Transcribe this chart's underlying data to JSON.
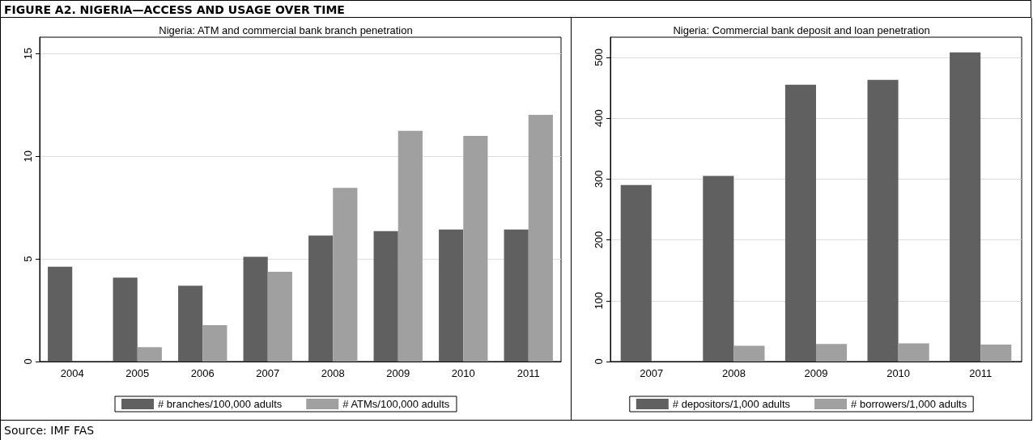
{
  "chart_data": [
    {
      "type": "bar",
      "title": "Nigeria: ATM and commercial bank branch penetration",
      "annotations": [
        "FIGURE A2. NIGERIA—ACCESS AND USAGE OVER TIME",
        "Source: IMF FAS"
      ],
      "categories": [
        "2004",
        "2005",
        "2006",
        "2007",
        "2008",
        "2009",
        "2010",
        "2011"
      ],
      "series": [
        {
          "name": "# branches/100,000 adults",
          "color": "#606060",
          "values": [
            4.62,
            4.09,
            3.69,
            5.1,
            6.14,
            6.35,
            6.43,
            6.43
          ]
        },
        {
          "name": "# ATMs/100,000 adults",
          "color": "#a0a0a0",
          "values": [
            null,
            0.7,
            1.77,
            4.37,
            8.46,
            11.24,
            10.99,
            12.02
          ]
        }
      ],
      "ylim": [
        0,
        15.8
      ],
      "yticks": [
        0,
        5,
        10,
        15
      ],
      "grid": "y",
      "legend": "bottom"
    },
    {
      "type": "bar",
      "title": "Nigeria: Commercial bank deposit and loan penetration",
      "categories": [
        "2007",
        "2008",
        "2009",
        "2010",
        "2011"
      ],
      "series": [
        {
          "name": "# depositors/1,000 adults",
          "color": "#606060",
          "values": [
            290,
            305,
            455,
            463,
            508
          ]
        },
        {
          "name": "# borrowers/1,000 adults",
          "color": "#a0a0a0",
          "values": [
            null,
            26,
            29,
            30,
            28
          ]
        }
      ],
      "ylim": [
        0,
        533
      ],
      "yticks": [
        0,
        100,
        200,
        300,
        400,
        500
      ],
      "grid": "y",
      "legend": "bottom"
    }
  ]
}
